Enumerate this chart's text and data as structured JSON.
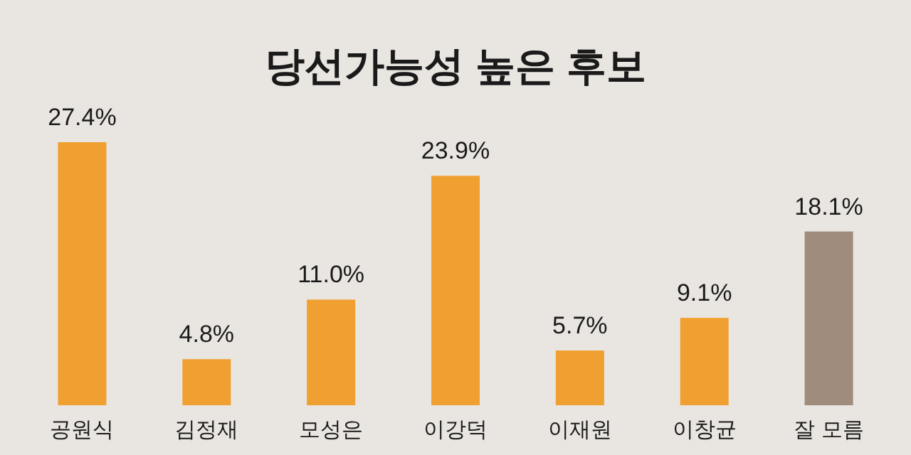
{
  "chart_data": {
    "type": "bar",
    "title": "당선가능성 높은 후보",
    "categories": [
      "공원식",
      "김정재",
      "모성은",
      "이강덕",
      "이재원",
      "이창균",
      "잘 모름"
    ],
    "values": [
      27.4,
      4.8,
      11.0,
      23.9,
      5.7,
      9.1,
      18.1
    ],
    "value_labels": [
      "27.4%",
      "4.8%",
      "11.0%",
      "23.9%",
      "5.7%",
      "9.1%",
      "18.1%"
    ],
    "colors": [
      "#f0a030",
      "#f0a030",
      "#f0a030",
      "#f0a030",
      "#f0a030",
      "#f0a030",
      "#a08c7c"
    ]
  }
}
